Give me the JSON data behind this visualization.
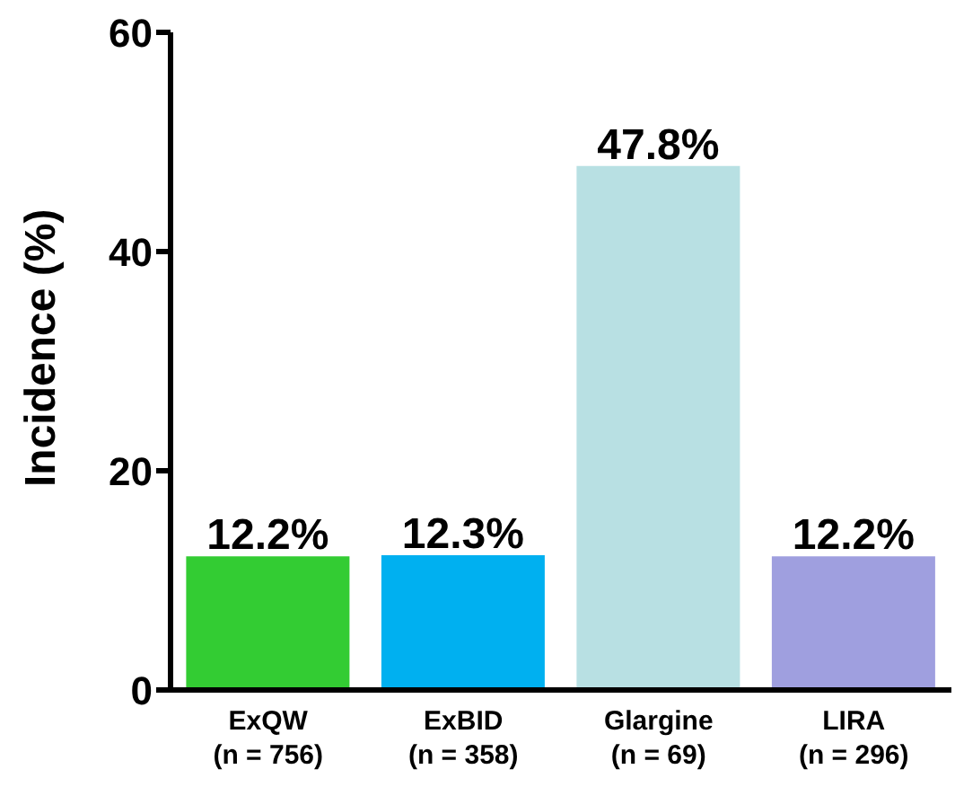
{
  "chart_data": {
    "type": "bar",
    "ylabel": "Incidence (%)",
    "categories": [
      "ExQW\n(n = 756)",
      "ExBID\n(n = 358)",
      "Glargine\n(n = 69)",
      "LIRA\n(n = 296)"
    ],
    "values": [
      12.2,
      12.3,
      47.8,
      12.2
    ],
    "colors": [
      "#33cc33",
      "#00b0f0",
      "#b8e0e3",
      "#9f9fdf"
    ],
    "value_labels": [
      "12.2%",
      "12.3%",
      "47.8%",
      "12.2%"
    ],
    "ylim": [
      0,
      60
    ],
    "yticks": [
      0,
      20,
      40,
      60
    ],
    "grid": false,
    "legend": false
  }
}
